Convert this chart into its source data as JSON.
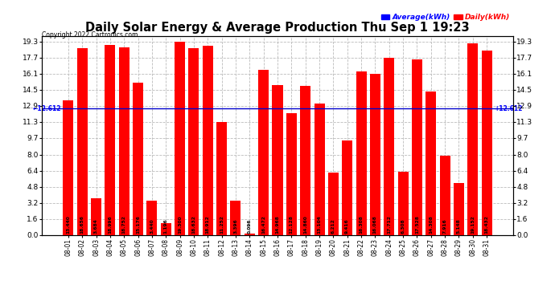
{
  "title": "Daily Solar Energy & Average Production Thu Sep 1 19:23",
  "copyright": "Copyright 2022 Cartronics.com",
  "legend_avg": "Average(kWh)",
  "legend_daily": "Daily(kWh)",
  "average_value": 12.612,
  "categories": [
    "08-01",
    "08-02",
    "08-03",
    "08-04",
    "08-05",
    "08-06",
    "08-07",
    "08-08",
    "08-09",
    "08-10",
    "08-11",
    "08-12",
    "08-13",
    "08-14",
    "08-15",
    "08-16",
    "08-17",
    "08-18",
    "08-19",
    "08-20",
    "08-21",
    "08-22",
    "08-23",
    "08-24",
    "08-25",
    "08-26",
    "08-27",
    "08-28",
    "08-29",
    "08-30",
    "08-31"
  ],
  "values": [
    13.44,
    18.656,
    3.684,
    18.996,
    18.752,
    15.176,
    3.44,
    1.196,
    19.3,
    18.632,
    18.912,
    11.252,
    3.396,
    0.096,
    16.472,
    14.968,
    12.128,
    14.86,
    13.104,
    6.212,
    9.416,
    16.308,
    16.068,
    17.712,
    6.308,
    17.528,
    14.308,
    7.916,
    5.148,
    19.152,
    18.432
  ],
  "bar_color": "#ff0000",
  "avg_line_color": "#0000cd",
  "title_color": "#000000",
  "copyright_color": "#000000",
  "legend_avg_color": "#0000ff",
  "legend_daily_color": "#ff0000",
  "yticks": [
    0.0,
    1.6,
    3.2,
    4.8,
    6.4,
    8.0,
    9.7,
    11.3,
    12.9,
    14.5,
    16.1,
    17.7,
    19.3
  ],
  "ylim": [
    0,
    19.85
  ],
  "background_color": "#ffffff",
  "grid_color": "#bbbbbb",
  "avg_annotation": "12.612",
  "label_fontsize": 4.2,
  "xtick_fontsize": 5.5,
  "ytick_fontsize": 6.5,
  "title_fontsize": 10.5,
  "copyright_fontsize": 5.5,
  "legend_fontsize": 6.5
}
